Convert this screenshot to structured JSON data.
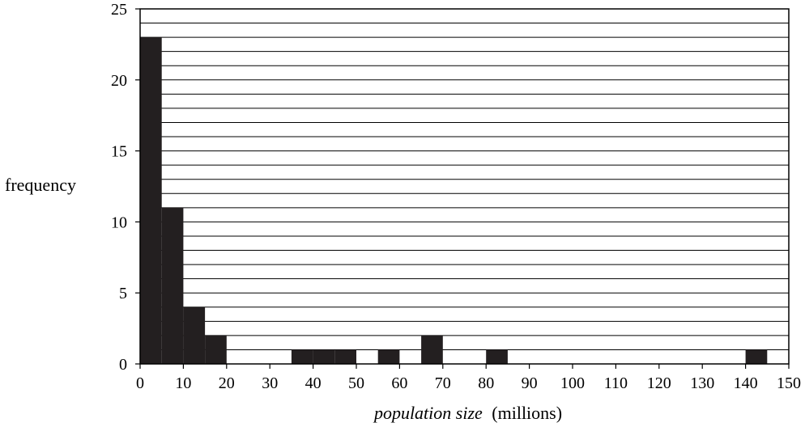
{
  "chart_data": {
    "type": "bar",
    "title": "",
    "ylabel": "frequency",
    "xlabel_italic": "population size",
    "xlabel_units": "(millions)",
    "xlim": [
      0,
      150
    ],
    "ylim": [
      0,
      25
    ],
    "x_ticks": [
      0,
      10,
      20,
      30,
      40,
      50,
      60,
      70,
      80,
      90,
      100,
      110,
      120,
      130,
      140,
      150
    ],
    "y_ticks": [
      0,
      5,
      10,
      15,
      20,
      25
    ],
    "grid": "horizontal-every-1",
    "bin_width": 5,
    "bins": [
      {
        "start": 0,
        "end": 5,
        "value": 23
      },
      {
        "start": 5,
        "end": 10,
        "value": 11
      },
      {
        "start": 10,
        "end": 15,
        "value": 4
      },
      {
        "start": 15,
        "end": 20,
        "value": 2
      },
      {
        "start": 20,
        "end": 25,
        "value": 0
      },
      {
        "start": 25,
        "end": 30,
        "value": 0
      },
      {
        "start": 30,
        "end": 35,
        "value": 0
      },
      {
        "start": 35,
        "end": 40,
        "value": 1
      },
      {
        "start": 40,
        "end": 45,
        "value": 1
      },
      {
        "start": 45,
        "end": 50,
        "value": 1
      },
      {
        "start": 50,
        "end": 55,
        "value": 0
      },
      {
        "start": 55,
        "end": 60,
        "value": 1
      },
      {
        "start": 60,
        "end": 65,
        "value": 0
      },
      {
        "start": 65,
        "end": 70,
        "value": 2
      },
      {
        "start": 70,
        "end": 75,
        "value": 0
      },
      {
        "start": 75,
        "end": 80,
        "value": 0
      },
      {
        "start": 80,
        "end": 85,
        "value": 1
      },
      {
        "start": 85,
        "end": 90,
        "value": 0
      },
      {
        "start": 90,
        "end": 95,
        "value": 0
      },
      {
        "start": 95,
        "end": 100,
        "value": 0
      },
      {
        "start": 100,
        "end": 105,
        "value": 0
      },
      {
        "start": 105,
        "end": 110,
        "value": 0
      },
      {
        "start": 110,
        "end": 115,
        "value": 0
      },
      {
        "start": 115,
        "end": 120,
        "value": 0
      },
      {
        "start": 120,
        "end": 125,
        "value": 0
      },
      {
        "start": 125,
        "end": 130,
        "value": 0
      },
      {
        "start": 130,
        "end": 135,
        "value": 0
      },
      {
        "start": 135,
        "end": 140,
        "value": 0
      },
      {
        "start": 140,
        "end": 145,
        "value": 1
      },
      {
        "start": 145,
        "end": 150,
        "value": 0
      }
    ],
    "colors": {
      "bar": "#231f20",
      "grid": "#000000",
      "axis": "#000000"
    }
  }
}
